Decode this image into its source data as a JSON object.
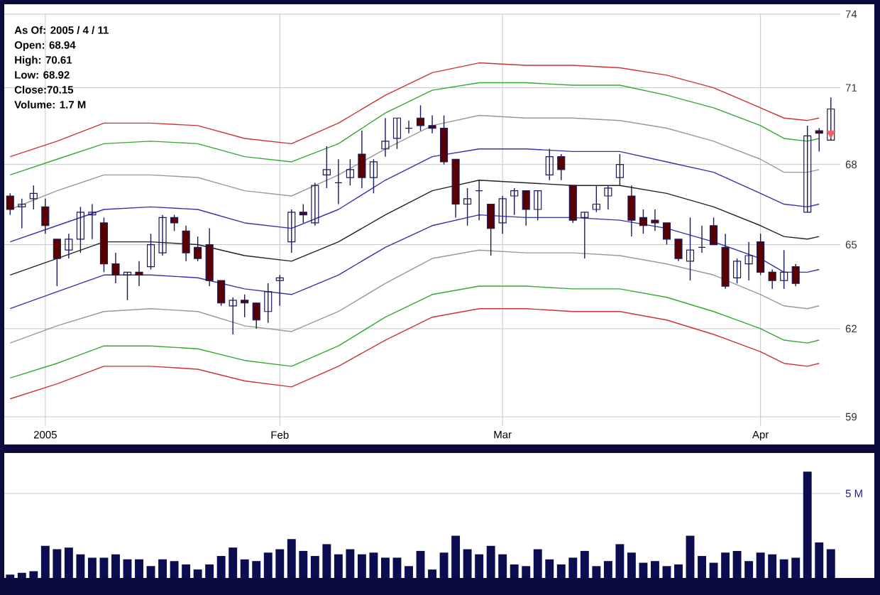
{
  "chart_data": [
    {
      "type": "candlestick",
      "annotations": [
        "As Of: 2005 / 4 / 11",
        "Open: 68.94",
        "High: 70.61",
        "Low: 68.92",
        "Close:70.15",
        "Volume: 1.7 M"
      ],
      "categories": [
        null,
        null,
        null,
        "2005",
        null,
        null,
        null,
        null,
        null,
        null,
        null,
        null,
        null,
        null,
        null,
        null,
        null,
        null,
        null,
        null,
        null,
        null,
        null,
        "Feb",
        null,
        null,
        null,
        null,
        null,
        null,
        null,
        null,
        null,
        null,
        null,
        null,
        null,
        null,
        null,
        null,
        null,
        null,
        "Mar",
        null,
        null,
        null,
        null,
        null,
        null,
        null,
        null,
        null,
        null,
        null,
        null,
        null,
        null,
        null,
        null,
        null,
        null,
        null,
        null,
        null,
        "Apr",
        null,
        null,
        null,
        null,
        null,
        null
      ],
      "ohlc": [
        [
          66.8,
          66.9,
          66.1,
          66.3
        ],
        [
          66.4,
          66.7,
          65.6,
          66.5
        ],
        [
          66.7,
          67.2,
          66.3,
          66.9
        ],
        [
          66.4,
          66.7,
          65.4,
          65.7
        ],
        [
          65.2,
          65.2,
          63.5,
          64.5
        ],
        [
          64.8,
          65.4,
          64.5,
          65.2
        ],
        [
          65.2,
          66.4,
          64.7,
          66.2
        ],
        [
          66.1,
          66.5,
          65.2,
          66.2
        ],
        [
          65.8,
          66.0,
          64.0,
          64.3
        ],
        [
          64.3,
          64.7,
          63.6,
          63.9
        ],
        [
          63.9,
          64.0,
          63.0,
          64.0
        ],
        [
          64.0,
          64.4,
          63.5,
          63.9
        ],
        [
          64.2,
          65.4,
          64.1,
          65.0
        ],
        [
          64.7,
          66.1,
          64.6,
          66.0
        ],
        [
          66.0,
          66.1,
          65.5,
          65.8
        ],
        [
          65.5,
          65.7,
          64.4,
          64.7
        ],
        [
          64.9,
          65.3,
          64.4,
          64.5
        ],
        [
          65.0,
          65.6,
          63.5,
          63.7
        ],
        [
          63.7,
          63.7,
          62.8,
          62.9
        ],
        [
          62.8,
          63.1,
          61.8,
          63.0
        ],
        [
          63.0,
          63.2,
          62.4,
          62.9
        ],
        [
          62.9,
          62.9,
          62.0,
          62.3
        ],
        [
          62.6,
          63.6,
          62.2,
          63.3
        ],
        [
          63.7,
          63.9,
          62.8,
          63.8
        ],
        [
          65.1,
          66.3,
          64.7,
          66.2
        ],
        [
          66.2,
          66.5,
          65.8,
          66.1
        ],
        [
          65.8,
          67.3,
          65.7,
          67.2
        ],
        [
          67.6,
          68.7,
          67.1,
          67.8
        ],
        [
          67.3,
          68.2,
          66.5,
          67.3
        ],
        [
          67.5,
          68.2,
          67.2,
          67.8
        ],
        [
          68.4,
          69.3,
          67.1,
          67.5
        ],
        [
          67.5,
          68.2,
          66.9,
          68.1
        ],
        [
          68.6,
          69.8,
          68.3,
          68.9
        ],
        [
          69.0,
          69.8,
          68.6,
          69.8
        ],
        [
          69.4,
          69.7,
          69.2,
          69.4
        ],
        [
          69.8,
          70.3,
          69.3,
          69.5
        ],
        [
          69.5,
          69.9,
          69.2,
          69.4
        ],
        [
          69.4,
          69.9,
          68.0,
          68.1
        ],
        [
          68.2,
          68.2,
          66.0,
          66.5
        ],
        [
          66.5,
          67.1,
          65.7,
          66.7
        ],
        [
          67.0,
          67.4,
          65.9,
          67.0
        ],
        [
          66.5,
          66.5,
          64.6,
          65.6
        ],
        [
          65.8,
          66.8,
          65.4,
          66.7
        ],
        [
          66.8,
          67.1,
          66.1,
          67.0
        ],
        [
          67.0,
          67.0,
          65.7,
          66.3
        ],
        [
          66.3,
          67.0,
          65.9,
          67.0
        ],
        [
          67.6,
          68.6,
          67.4,
          68.3
        ],
        [
          68.3,
          68.4,
          67.4,
          67.8
        ],
        [
          67.2,
          67.2,
          65.8,
          65.9
        ],
        [
          66.0,
          66.2,
          64.5,
          66.2
        ],
        [
          66.3,
          67.2,
          66.2,
          66.5
        ],
        [
          66.8,
          67.2,
          66.3,
          67.1
        ],
        [
          67.5,
          68.4,
          67.2,
          68.0
        ],
        [
          66.8,
          67.2,
          65.3,
          65.9
        ],
        [
          66.0,
          66.3,
          65.4,
          65.7
        ],
        [
          65.9,
          66.3,
          65.5,
          65.8
        ],
        [
          65.8,
          65.8,
          65.0,
          65.2
        ],
        [
          65.2,
          65.2,
          64.4,
          64.5
        ],
        [
          64.4,
          66.0,
          63.7,
          64.8
        ],
        [
          64.9,
          65.7,
          64.7,
          64.9
        ],
        [
          65.7,
          66.0,
          65.0,
          65.0
        ],
        [
          64.9,
          65.4,
          63.4,
          63.5
        ],
        [
          63.8,
          64.5,
          63.6,
          64.4
        ],
        [
          64.3,
          65.1,
          63.7,
          64.6
        ],
        [
          65.1,
          65.4,
          63.9,
          64.0
        ],
        [
          64.0,
          64.1,
          63.4,
          63.7
        ],
        [
          63.7,
          64.8,
          63.4,
          64.0
        ],
        [
          64.2,
          64.3,
          63.5,
          63.6
        ],
        [
          66.2,
          69.5,
          66.2,
          69.1
        ],
        [
          69.3,
          69.4,
          68.5,
          69.2
        ],
        [
          68.94,
          70.61,
          68.92,
          70.15
        ]
      ],
      "series": [
        {
          "type": "line",
          "color": "#cc3333",
          "values": [
            68.3,
            null,
            null,
            null,
            68.9,
            null,
            null,
            null,
            69.6,
            null,
            null,
            null,
            69.6,
            null,
            null,
            null,
            69.5,
            null,
            null,
            null,
            69.0,
            null,
            null,
            null,
            68.8,
            null,
            null,
            null,
            69.6,
            null,
            null,
            null,
            70.7,
            null,
            null,
            null,
            71.6,
            null,
            null,
            null,
            72.0,
            null,
            null,
            null,
            71.9,
            null,
            null,
            null,
            71.9,
            null,
            null,
            null,
            71.8,
            null,
            null,
            null,
            71.5,
            null,
            null,
            null,
            71.0,
            null,
            null,
            null,
            70.2,
            null,
            69.8,
            null,
            69.7,
            69.8,
            null
          ]
        },
        {
          "type": "line",
          "color": "#33aa33",
          "values": [
            67.6,
            null,
            null,
            null,
            68.2,
            null,
            null,
            null,
            68.8,
            null,
            null,
            null,
            68.9,
            null,
            null,
            null,
            68.8,
            null,
            null,
            null,
            68.3,
            null,
            null,
            null,
            68.1,
            null,
            null,
            null,
            68.8,
            null,
            null,
            null,
            70.0,
            null,
            null,
            null,
            70.9,
            null,
            null,
            null,
            71.2,
            null,
            null,
            null,
            71.2,
            null,
            null,
            null,
            71.1,
            null,
            null,
            null,
            71.1,
            null,
            null,
            null,
            70.7,
            null,
            null,
            null,
            70.2,
            null,
            null,
            null,
            69.5,
            null,
            69.0,
            null,
            68.9,
            69.0,
            null
          ]
        },
        {
          "type": "line",
          "color": "#999999",
          "values": [
            66.3,
            null,
            null,
            null,
            67.0,
            null,
            null,
            null,
            67.6,
            null,
            null,
            null,
            67.6,
            null,
            null,
            null,
            67.5,
            null,
            null,
            null,
            67.0,
            null,
            null,
            null,
            66.8,
            null,
            null,
            null,
            67.6,
            null,
            null,
            null,
            68.6,
            null,
            null,
            null,
            69.5,
            null,
            null,
            null,
            69.9,
            null,
            null,
            null,
            69.8,
            null,
            null,
            null,
            69.8,
            null,
            null,
            null,
            69.7,
            null,
            null,
            null,
            69.4,
            null,
            null,
            null,
            68.9,
            null,
            null,
            null,
            68.2,
            null,
            67.7,
            null,
            67.7,
            67.8,
            null
          ]
        },
        {
          "type": "line",
          "color": "#3333aa",
          "values": [
            65.1,
            null,
            null,
            null,
            65.7,
            null,
            null,
            null,
            66.3,
            null,
            null,
            null,
            66.4,
            null,
            null,
            null,
            66.3,
            null,
            null,
            null,
            65.8,
            null,
            null,
            null,
            65.6,
            null,
            null,
            null,
            66.3,
            null,
            null,
            null,
            67.4,
            null,
            null,
            null,
            68.3,
            null,
            null,
            null,
            68.6,
            null,
            null,
            null,
            68.6,
            null,
            null,
            null,
            68.5,
            null,
            null,
            null,
            68.5,
            null,
            null,
            null,
            68.1,
            null,
            null,
            null,
            67.7,
            null,
            null,
            null,
            66.9,
            null,
            66.5,
            null,
            66.4,
            66.5,
            null
          ]
        },
        {
          "type": "line",
          "color": "#222222",
          "values": [
            63.9,
            null,
            null,
            null,
            64.5,
            null,
            null,
            null,
            65.1,
            null,
            null,
            null,
            65.1,
            null,
            null,
            null,
            65.0,
            null,
            null,
            null,
            64.6,
            null,
            null,
            null,
            64.4,
            null,
            null,
            null,
            65.1,
            null,
            null,
            null,
            66.1,
            null,
            null,
            null,
            67.0,
            null,
            null,
            null,
            67.4,
            null,
            null,
            null,
            67.3,
            null,
            null,
            null,
            67.2,
            null,
            null,
            null,
            67.2,
            null,
            null,
            null,
            66.9,
            null,
            null,
            null,
            66.4,
            null,
            null,
            null,
            65.7,
            null,
            65.3,
            null,
            65.2,
            65.3,
            null
          ]
        },
        {
          "type": "line",
          "color": "#3333aa",
          "values": [
            62.7,
            null,
            null,
            null,
            63.3,
            null,
            null,
            null,
            63.9,
            null,
            null,
            null,
            63.9,
            null,
            null,
            null,
            63.8,
            null,
            null,
            null,
            63.4,
            null,
            null,
            null,
            63.2,
            null,
            null,
            null,
            63.9,
            null,
            null,
            null,
            64.9,
            null,
            null,
            null,
            65.7,
            null,
            null,
            null,
            66.1,
            null,
            null,
            null,
            66.0,
            null,
            null,
            null,
            66.0,
            null,
            null,
            null,
            65.9,
            null,
            null,
            null,
            65.6,
            null,
            null,
            null,
            65.1,
            null,
            null,
            null,
            64.5,
            null,
            64.0,
            null,
            64.0,
            64.1,
            null
          ]
        },
        {
          "type": "line",
          "color": "#999999",
          "values": [
            61.5,
            null,
            null,
            null,
            62.1,
            null,
            null,
            null,
            62.6,
            null,
            null,
            null,
            62.7,
            null,
            null,
            null,
            62.6,
            null,
            null,
            null,
            62.1,
            null,
            null,
            null,
            61.9,
            null,
            null,
            null,
            62.6,
            null,
            null,
            null,
            63.6,
            null,
            null,
            null,
            64.5,
            null,
            null,
            null,
            64.8,
            null,
            null,
            null,
            64.7,
            null,
            null,
            null,
            64.7,
            null,
            null,
            null,
            64.6,
            null,
            null,
            null,
            64.3,
            null,
            null,
            null,
            63.9,
            null,
            null,
            null,
            63.2,
            null,
            62.8,
            null,
            62.7,
            62.8,
            null
          ]
        },
        {
          "type": "line",
          "color": "#33aa33",
          "values": [
            60.3,
            null,
            null,
            null,
            60.8,
            null,
            null,
            null,
            61.4,
            null,
            null,
            null,
            61.4,
            null,
            null,
            null,
            61.3,
            null,
            null,
            null,
            60.9,
            null,
            null,
            null,
            60.7,
            null,
            null,
            null,
            61.4,
            null,
            null,
            null,
            62.4,
            null,
            null,
            null,
            63.2,
            null,
            null,
            null,
            63.5,
            null,
            null,
            null,
            63.5,
            null,
            null,
            null,
            63.4,
            null,
            null,
            null,
            63.4,
            null,
            null,
            null,
            63.1,
            null,
            null,
            null,
            62.6,
            null,
            null,
            null,
            62.0,
            null,
            61.6,
            null,
            61.5,
            61.6,
            null
          ]
        },
        {
          "type": "line",
          "color": "#cc3333",
          "values": [
            59.6,
            null,
            null,
            null,
            60.1,
            null,
            null,
            null,
            60.7,
            null,
            null,
            null,
            60.7,
            null,
            null,
            null,
            60.6,
            null,
            null,
            null,
            60.2,
            null,
            null,
            null,
            60.0,
            null,
            null,
            null,
            60.7,
            null,
            null,
            null,
            61.6,
            null,
            null,
            null,
            62.4,
            null,
            null,
            null,
            62.7,
            null,
            null,
            null,
            62.7,
            null,
            null,
            null,
            62.6,
            null,
            null,
            null,
            62.6,
            null,
            null,
            null,
            62.3,
            null,
            null,
            null,
            61.8,
            null,
            null,
            null,
            61.2,
            null,
            60.8,
            null,
            60.7,
            60.8,
            null
          ]
        },
        {
          "type": "scatter",
          "color": "#f06060",
          "marker": "triangle",
          "values": [
            null,
            null,
            null,
            null,
            null,
            null,
            null,
            null,
            null,
            null,
            null,
            null,
            null,
            null,
            null,
            null,
            null,
            null,
            null,
            null,
            null,
            null,
            null,
            null,
            null,
            null,
            null,
            null,
            null,
            null,
            null,
            null,
            null,
            null,
            null,
            null,
            null,
            null,
            null,
            null,
            null,
            null,
            null,
            null,
            null,
            null,
            null,
            null,
            null,
            null,
            null,
            null,
            null,
            null,
            null,
            null,
            null,
            null,
            null,
            null,
            null,
            null,
            null,
            null,
            null,
            null,
            null,
            null,
            null,
            null,
            69.2
          ]
        }
      ],
      "ylim": [
        58.7,
        74
      ],
      "yticks": [
        59,
        62,
        65,
        68,
        71,
        74
      ],
      "log": true,
      "grid": true
    },
    {
      "type": "bar",
      "color": "#0c0c50",
      "categories": [
        null,
        null,
        null,
        null,
        null,
        null,
        null,
        null,
        null,
        null,
        null,
        null,
        null,
        null,
        null,
        null,
        null,
        null,
        null,
        null,
        null,
        null,
        null,
        null,
        null,
        null,
        null,
        null,
        null,
        null,
        null,
        null,
        null,
        null,
        null,
        null,
        null,
        null,
        null,
        null,
        null,
        null,
        null,
        null,
        null,
        null,
        null,
        null,
        null,
        null,
        null,
        null,
        null,
        null,
        null,
        null,
        null,
        null,
        null,
        null,
        null,
        null,
        null,
        null,
        null,
        null,
        null,
        null,
        null,
        null,
        null
      ],
      "values": [
        0.2,
        0.3,
        0.4,
        1.9,
        1.7,
        1.8,
        1.4,
        1.2,
        1.2,
        1.4,
        1.1,
        1.1,
        0.7,
        1.1,
        1.0,
        0.8,
        0.5,
        0.8,
        1.3,
        1.8,
        1.1,
        1.0,
        1.5,
        1.7,
        2.3,
        1.6,
        1.3,
        2.0,
        1.4,
        1.7,
        1.4,
        1.5,
        1.2,
        1.2,
        0.7,
        1.6,
        0.5,
        1.5,
        2.5,
        1.7,
        1.4,
        1.9,
        1.4,
        0.8,
        0.7,
        1.7,
        1.1,
        0.8,
        1.2,
        1.6,
        0.7,
        1.0,
        2.0,
        1.5,
        0.9,
        1.0,
        0.7,
        0.8,
        2.5,
        1.3,
        0.9,
        1.5,
        1.6,
        1.0,
        1.5,
        1.4,
        1.1,
        1.2,
        6.3,
        2.1,
        1.7
      ],
      "ylim": [
        0,
        7.4
      ],
      "yticks": [
        {
          "value": 5,
          "label": "5 M"
        }
      ],
      "tick_labels": "y",
      "grid": "y"
    }
  ]
}
